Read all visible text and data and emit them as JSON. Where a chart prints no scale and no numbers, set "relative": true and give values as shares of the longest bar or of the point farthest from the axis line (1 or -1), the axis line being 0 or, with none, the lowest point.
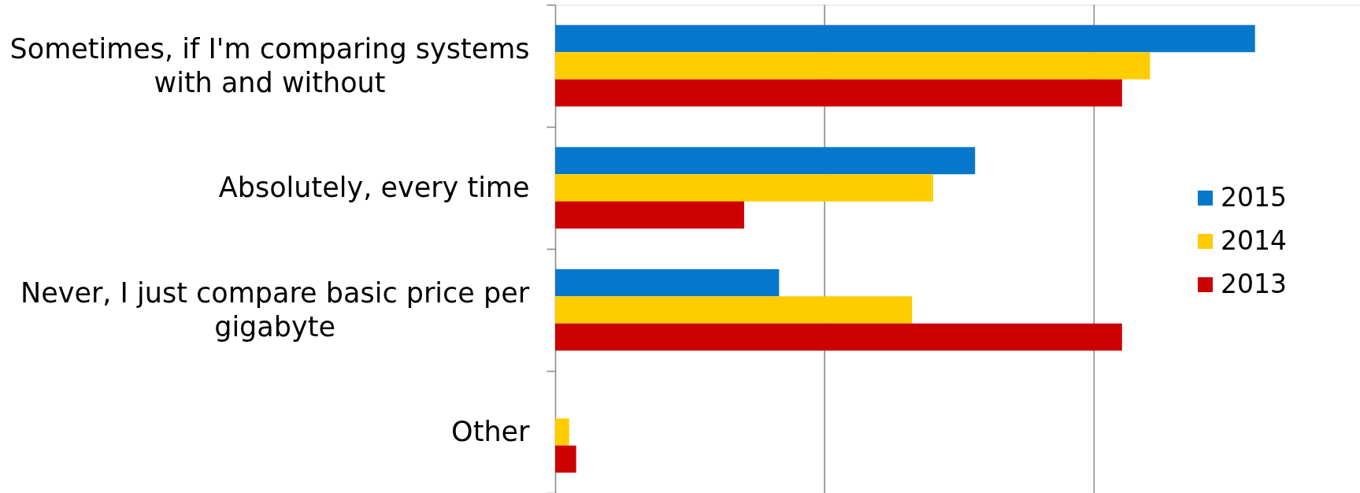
{
  "chart_data": {
    "type": "bar",
    "orientation": "horizontal",
    "relative": true,
    "legend": "right",
    "categories": [
      "Sometimes, if I'm comparing systems with and without",
      "Absolutely, every time",
      "Never, I just compare basic price per gigabyte",
      "Other"
    ],
    "series": [
      {
        "name": "2015",
        "color": "#0678cc",
        "values": [
          1,
          0.6,
          0.32,
          null
        ]
      },
      {
        "name": "2014",
        "color": "#ffcc00",
        "values": [
          0.85,
          0.54,
          0.51,
          0.02
        ]
      },
      {
        "name": "2013",
        "color": "#cc0000",
        "values": [
          0.81,
          0.27,
          0.81,
          0.03
        ]
      }
    ],
    "ref_lines": [
      {
        "axis": "x",
        "value": 0.385,
        "color": "#8c8c8c"
      },
      {
        "axis": "x",
        "value": 0.77,
        "color": "#8c8c8c"
      }
    ]
  }
}
